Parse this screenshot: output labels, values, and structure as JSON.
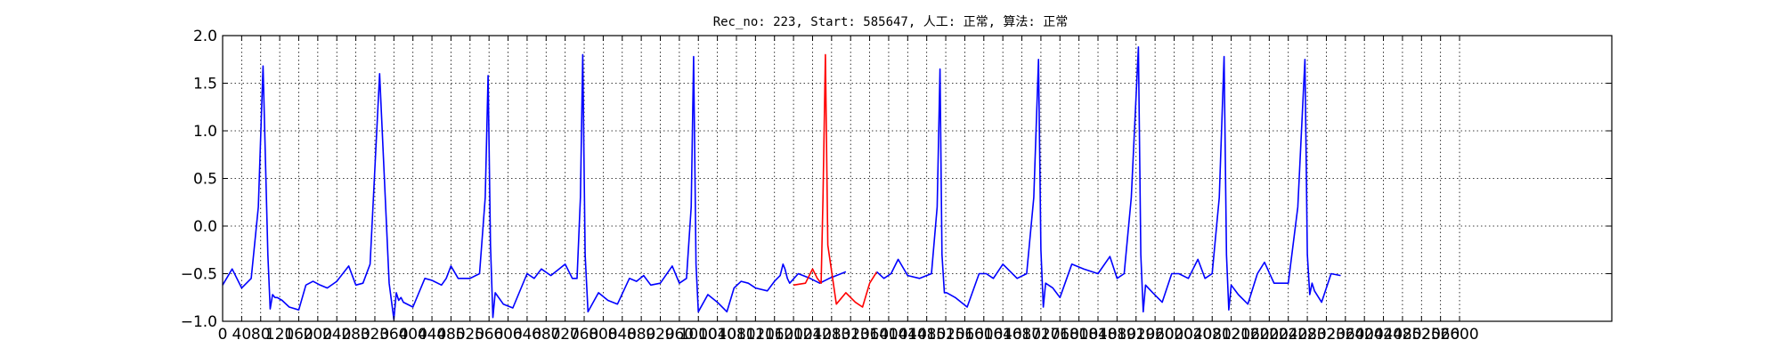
{
  "chart_data": {
    "type": "line",
    "title": "Rec_no: 223, Start: 585647, 人工: 正常, 算法: 正常",
    "xlabel": "",
    "ylabel": "",
    "xlim": [
      0,
      2920
    ],
    "ylim": [
      -1.0,
      2.0
    ],
    "grid": true,
    "y_ticks": [
      -1.0,
      -0.5,
      0.0,
      0.5,
      1.0,
      1.5,
      2.0
    ],
    "y_tick_labels": [
      "−1.0",
      "−0.5",
      "0.0",
      "0.5",
      "1.0",
      "1.5",
      "2.0"
    ],
    "x_ticks": [
      0,
      40,
      80,
      120,
      160,
      200,
      240,
      280,
      320,
      360,
      400,
      440,
      480,
      520,
      560,
      600,
      640,
      680,
      720,
      760,
      800,
      840,
      880,
      920,
      960,
      1000,
      1040,
      1080,
      1120,
      1160,
      1200,
      1240,
      1280,
      1320,
      1360,
      1400,
      1440,
      1480,
      1520,
      1560,
      1600,
      1640,
      1680,
      1720,
      1760,
      1800,
      1840,
      1880,
      1920,
      1960,
      2000,
      2040,
      2080,
      2120,
      2160,
      2200,
      2240,
      2280,
      2320,
      2360,
      2400,
      2440,
      2480,
      2520,
      2560,
      2600
    ],
    "x_tick_labels": [
      "0",
      "40",
      "80",
      "120",
      "160",
      "200",
      "240",
      "280",
      "320",
      "360",
      "400",
      "440",
      "480",
      "520",
      "560",
      "600",
      "640",
      "680",
      "720",
      "760",
      "800",
      "840",
      "880",
      "920",
      "960",
      "1000",
      "1040",
      "1080",
      "1120",
      "1160",
      "1200",
      "1240",
      "1280",
      "1320",
      "1360",
      "1400",
      "1440",
      "1480",
      "1520",
      "1560",
      "1600",
      "1640",
      "1680",
      "1720",
      "1760",
      "1800",
      "1840",
      "1880",
      "1920",
      "1960",
      "2000",
      "2040",
      "2080",
      "2120",
      "2160",
      "2200",
      "2240",
      "2280",
      "2320",
      "2360",
      "2400",
      "2440",
      "2480",
      "2520",
      "2560",
      "2600"
    ],
    "series": [
      {
        "color": "#0000ff",
        "x": [
          0,
          20,
          40,
          60,
          75,
          85,
          95,
          100,
          105,
          110,
          115,
          125,
          140,
          160,
          175,
          190,
          205,
          220,
          240,
          265,
          280,
          295,
          310,
          330,
          350,
          360,
          365,
          370,
          375,
          380,
          400,
          425,
          440,
          460,
          470,
          480,
          495,
          520,
          540,
          552,
          558,
          563,
          568,
          573,
          590,
          610,
          640,
          655,
          670,
          690,
          720,
          735,
          745,
          752,
          757,
          762,
          768,
          790,
          810,
          830,
          855,
          870,
          885,
          900,
          920,
          945,
          960,
          975,
          985,
          990,
          995,
          1000,
          1020,
          1040,
          1060,
          1075,
          1090,
          1105,
          1120,
          1145,
          1160,
          1172,
          1178,
          1182,
          1187,
          1192,
          1210,
          1235,
          1255,
          1275,
          1290,
          1300,
          1310
        ],
        "y": [
          -0.62,
          -0.45,
          -0.65,
          -0.55,
          0.2,
          1.68,
          -0.3,
          -0.87,
          -0.72,
          -0.75,
          -0.75,
          -0.78,
          -0.85,
          -0.88,
          -0.62,
          -0.58,
          -0.62,
          -0.65,
          -0.58,
          -0.42,
          -0.62,
          -0.6,
          -0.4,
          1.6,
          -0.6,
          -0.98,
          -0.7,
          -0.78,
          -0.75,
          -0.8,
          -0.85,
          -0.55,
          -0.57,
          -0.62,
          -0.55,
          -0.42,
          -0.55,
          -0.55,
          -0.5,
          0.3,
          1.58,
          -0.2,
          -0.96,
          -0.7,
          -0.82,
          -0.86,
          -0.5,
          -0.55,
          -0.45,
          -0.52,
          -0.4,
          -0.55,
          -0.55,
          0.3,
          1.8,
          -0.3,
          -0.9,
          -0.7,
          -0.78,
          -0.82,
          -0.55,
          -0.58,
          -0.52,
          -0.62,
          -0.6,
          -0.42,
          -0.6,
          -0.55,
          0.2,
          1.78,
          -0.4,
          -0.9,
          -0.72,
          -0.8,
          -0.9,
          -0.65,
          -0.58,
          -0.6,
          -0.65,
          -0.68,
          -0.58,
          -0.52,
          -0.4,
          -0.45,
          -0.55,
          -0.6,
          -0.5,
          -0.55,
          -0.6,
          -0.55,
          -0.52,
          -0.5,
          -0.48
        ]
      },
      {
        "color": "#ff0000",
        "x": [
          1200,
          1225,
          1240,
          1250,
          1258,
          1262,
          1267,
          1272,
          1290,
          1310,
          1330,
          1345,
          1360,
          1375
        ],
        "y": [
          -0.62,
          -0.6,
          -0.45,
          -0.55,
          -0.6,
          0.3,
          1.8,
          -0.2,
          -0.82,
          -0.7,
          -0.8,
          -0.85,
          -0.6,
          -0.48
        ]
      },
      {
        "color": "#0000ff",
        "x": [
          1375,
          1390,
          1405,
          1420,
          1440,
          1465,
          1490,
          1502,
          1508,
          1512,
          1517,
          1522,
          1540,
          1565,
          1590,
          1605,
          1620,
          1640,
          1670,
          1690,
          1705,
          1715,
          1720,
          1725,
          1730,
          1745,
          1760,
          1785,
          1810,
          1840,
          1865,
          1880,
          1895,
          1910,
          1925,
          1930,
          1935,
          1940,
          1955,
          1975,
          1995,
          2010,
          2030,
          2050,
          2065,
          2080,
          2095,
          2105,
          2110,
          2115,
          2120,
          2135,
          2155,
          2175,
          2190,
          2210,
          2240,
          2260,
          2275,
          2280,
          2285,
          2290,
          2295,
          2310,
          2330,
          2350
        ],
        "y": [
          -0.48,
          -0.55,
          -0.5,
          -0.35,
          -0.52,
          -0.55,
          -0.5,
          0.2,
          1.65,
          -0.3,
          -0.7,
          -0.7,
          -0.75,
          -0.85,
          -0.5,
          -0.5,
          -0.55,
          -0.4,
          -0.55,
          -0.5,
          0.3,
          1.75,
          -0.25,
          -0.85,
          -0.6,
          -0.65,
          -0.75,
          -0.4,
          -0.45,
          -0.5,
          -0.32,
          -0.55,
          -0.5,
          0.3,
          1.88,
          -0.3,
          -0.9,
          -0.62,
          -0.7,
          -0.8,
          -0.5,
          -0.5,
          -0.55,
          -0.35,
          -0.55,
          -0.5,
          0.3,
          1.78,
          -0.3,
          -0.88,
          -0.62,
          -0.72,
          -0.82,
          -0.5,
          -0.38,
          -0.6,
          -0.6,
          0.2,
          1.75,
          -0.3,
          -0.72,
          -0.6,
          -0.68,
          -0.8,
          -0.5,
          -0.52
        ]
      }
    ]
  }
}
